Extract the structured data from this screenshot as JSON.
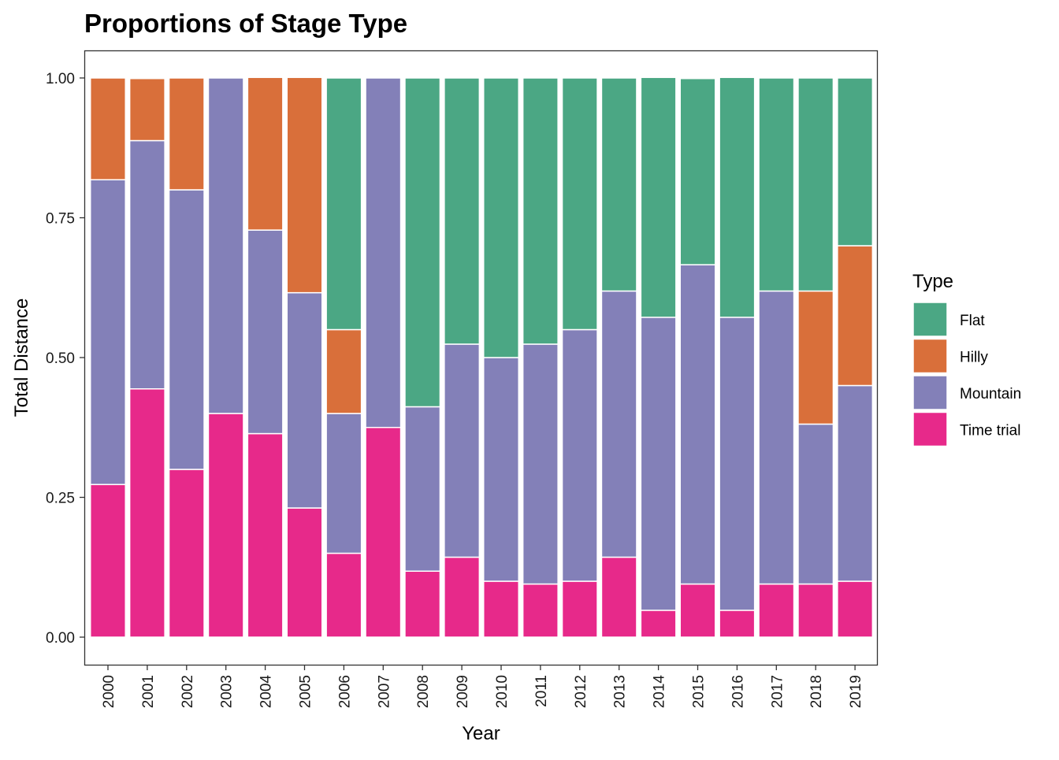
{
  "chart_data": {
    "type": "bar",
    "stacked": true,
    "title": "Proportions of Stage Type",
    "xlabel": "Year",
    "ylabel": "Total Distance",
    "ylim": [
      0,
      1
    ],
    "yticks": [
      "0.00",
      "0.25",
      "0.50",
      "0.75",
      "1.00"
    ],
    "categories": [
      "2000",
      "2001",
      "2002",
      "2003",
      "2004",
      "2005",
      "2006",
      "2007",
      "2008",
      "2009",
      "2010",
      "2011",
      "2012",
      "2013",
      "2014",
      "2015",
      "2016",
      "2017",
      "2018",
      "2019"
    ],
    "legend": {
      "title": "Type",
      "position": "right",
      "entries": [
        "Flat",
        "Hilly",
        "Mountain",
        "Time trial"
      ]
    },
    "series": [
      {
        "name": "Time trial",
        "color": "#E7298A",
        "values": [
          0.273,
          0.444,
          0.3,
          0.4,
          0.364,
          0.231,
          0.15,
          0.375,
          0.118,
          0.143,
          0.1,
          0.095,
          0.1,
          0.143,
          0.048,
          0.095,
          0.048,
          0.095,
          0.095,
          0.1
        ]
      },
      {
        "name": "Mountain",
        "color": "#8380B8",
        "values": [
          0.545,
          0.444,
          0.5,
          0.6,
          0.364,
          0.385,
          0.25,
          0.625,
          0.294,
          0.381,
          0.4,
          0.429,
          0.45,
          0.476,
          0.524,
          0.571,
          0.524,
          0.524,
          0.286,
          0.35
        ]
      },
      {
        "name": "Hilly",
        "color": "#D96F3A",
        "values": [
          0.182,
          0.111,
          0.2,
          0.0,
          0.273,
          0.385,
          0.15,
          0.0,
          0.0,
          0.0,
          0.0,
          0.0,
          0.0,
          0.0,
          0.0,
          0.0,
          0.0,
          0.0,
          0.238,
          0.25
        ]
      },
      {
        "name": "Flat",
        "color": "#4BA784",
        "values": [
          0.0,
          0.0,
          0.0,
          0.0,
          0.0,
          0.0,
          0.45,
          0.0,
          0.588,
          0.476,
          0.5,
          0.476,
          0.45,
          0.381,
          0.429,
          0.333,
          0.429,
          0.381,
          0.381,
          0.3
        ]
      }
    ]
  }
}
